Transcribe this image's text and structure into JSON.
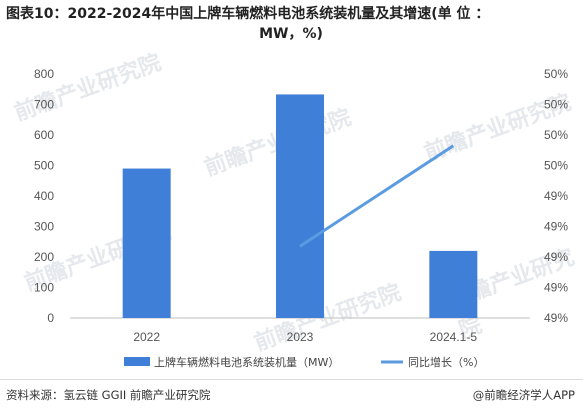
{
  "title": {
    "line1": "图表10：2022-2024年中国上牌车辆燃料电池系统装机量及其增速(单 位 ：",
    "line2": "MW，%)"
  },
  "footer": {
    "source": "资料来源：氢云链 GGII 前瞻产业研究院",
    "credit": "@前瞻经济学人APP"
  },
  "watermark": {
    "text": "前瞻产业研究院"
  },
  "colors": {
    "bar": "#3f7fd8",
    "line": "#5b9be0",
    "axis": "#bfbfbf"
  },
  "chart_data": {
    "type": "bar",
    "categories": [
      "2022",
      "2023",
      "2024.1-5"
    ],
    "series": [
      {
        "name": "上牌车辆燃料电池系统装机量（MW）",
        "type": "bar",
        "axis": "left",
        "values": [
          490,
          733,
          220
        ]
      },
      {
        "name": "同比增长（%）",
        "type": "line",
        "axis": "right",
        "values": [
          null,
          49.3,
          50.0
        ]
      }
    ],
    "y_left": {
      "ylim": [
        0,
        800
      ],
      "ticks": [
        "0",
        "100",
        "200",
        "300",
        "400",
        "500",
        "600",
        "700",
        "800"
      ]
    },
    "y_right": {
      "ylim": [
        48.8,
        50.5
      ],
      "ticks": [
        "49%",
        "49%",
        "49%",
        "49%",
        "49%",
        "50%",
        "50%",
        "50%",
        "50%"
      ]
    },
    "legend_position": "bottom",
    "grid": false
  }
}
